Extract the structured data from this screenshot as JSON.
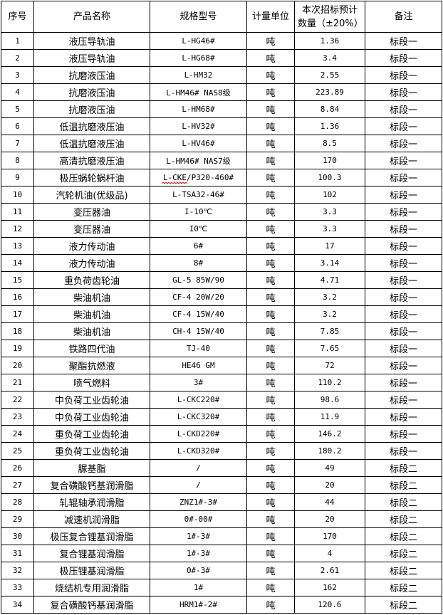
{
  "headers": [
    "序号",
    "产品名称",
    "规格型号",
    "计量单位",
    "本次招标预计数量（±20%）",
    "备注"
  ],
  "rows": [
    [
      "1",
      "液压导轨油",
      "L-HG46#",
      "吨",
      "1.36",
      "标段一"
    ],
    [
      "2",
      "液压导轨油",
      "L-HG68#",
      "吨",
      "3.4",
      "标段一"
    ],
    [
      "3",
      "抗磨液压油",
      "L-HM32",
      "吨",
      "2.55",
      "标段一"
    ],
    [
      "4",
      "抗磨液压油",
      "L-HM46# NAS8级",
      "吨",
      "223.89",
      "标段一"
    ],
    [
      "5",
      "抗磨液压油",
      "L-HM68#",
      "吨",
      "8.84",
      "标段一"
    ],
    [
      "6",
      "低温抗磨液压油",
      "L-HV32#",
      "吨",
      "1.36",
      "标段一"
    ],
    [
      "7",
      "低温抗磨液压油",
      "L-HV46#",
      "吨",
      "8.5",
      "标段一"
    ],
    [
      "8",
      "高清抗磨液压油",
      "L-HM46# NAS7级",
      "吨",
      "170",
      "标段一"
    ],
    [
      "9",
      "极压蜗轮蜗杆油",
      "L-CKE/P320-460#",
      "吨",
      "100.3",
      "标段一"
    ],
    [
      "10",
      "汽轮机油(优级品)",
      "L-TSA32-46#",
      "吨",
      "102",
      "标段一"
    ],
    [
      "11",
      "变压器油",
      "I-10℃",
      "吨",
      "3.3",
      "标段一"
    ],
    [
      "12",
      "变压器油",
      "I0℃",
      "吨",
      "3.3",
      "标段一"
    ],
    [
      "13",
      "液力传动油",
      "6#",
      "吨",
      "17",
      "标段一"
    ],
    [
      "14",
      "液力传动油",
      "8#",
      "吨",
      "3.14",
      "标段一"
    ],
    [
      "15",
      "重负荷齿轮油",
      "GL-5 85W/90",
      "吨",
      "4.71",
      "标段一"
    ],
    [
      "16",
      "柴油机油",
      "CF-4 20W/20",
      "吨",
      "3.2",
      "标段一"
    ],
    [
      "17",
      "柴油机油",
      "CF-4 15W/40",
      "吨",
      "3.2",
      "标段一"
    ],
    [
      "18",
      "柴油机油",
      "CH-4 15W/40",
      "吨",
      "7.85",
      "标段一"
    ],
    [
      "19",
      "铁路四代油",
      "TJ-40",
      "吨",
      "7.65",
      "标段一"
    ],
    [
      "20",
      "聚酯抗燃液",
      "HE46 GM",
      "吨",
      "72",
      "标段一"
    ],
    [
      "21",
      "喷气燃料",
      "3#",
      "吨",
      "110.2",
      "标段一"
    ],
    [
      "22",
      "中负荷工业齿轮油",
      "L-CKC220#",
      "吨",
      "98.6",
      "标段一"
    ],
    [
      "23",
      "中负荷工业齿轮油",
      "L-CKC320#",
      "吨",
      "11.9",
      "标段一"
    ],
    [
      "24",
      "重负荷工业齿轮油",
      "L-CKD220#",
      "吨",
      "146.2",
      "标段一"
    ],
    [
      "25",
      "重负荷工业齿轮油",
      "L-CKD320#",
      "吨",
      "180.2",
      "标段一"
    ],
    [
      "26",
      "脲基脂",
      "/",
      "吨",
      "49",
      "标段二"
    ],
    [
      "27",
      "复合磺酸钙基润滑脂",
      "/",
      "吨",
      "20",
      "标段二"
    ],
    [
      "28",
      "轧辊轴承润滑脂",
      "ZNZ1#-3#",
      "吨",
      "44",
      "标段二"
    ],
    [
      "29",
      "减速机润滑脂",
      "0#-00#",
      "吨",
      "20",
      "标段二"
    ],
    [
      "30",
      "极压复合锂基润滑脂",
      "1#-3#",
      "吨",
      "170",
      "标段二"
    ],
    [
      "31",
      "复合锂基润滑脂",
      "1#-3#",
      "吨",
      "4",
      "标段二"
    ],
    [
      "32",
      "极压锂基润滑脂",
      "0#-3#",
      "吨",
      "2.61",
      "标段二"
    ],
    [
      "33",
      "烧结机专用润滑脂",
      "1#",
      "吨",
      "162",
      "标段二"
    ],
    [
      "34",
      "复合磺酸钙基润滑脂",
      "HRM1#-2#",
      "吨",
      "120.6",
      "标段二"
    ]
  ]
}
